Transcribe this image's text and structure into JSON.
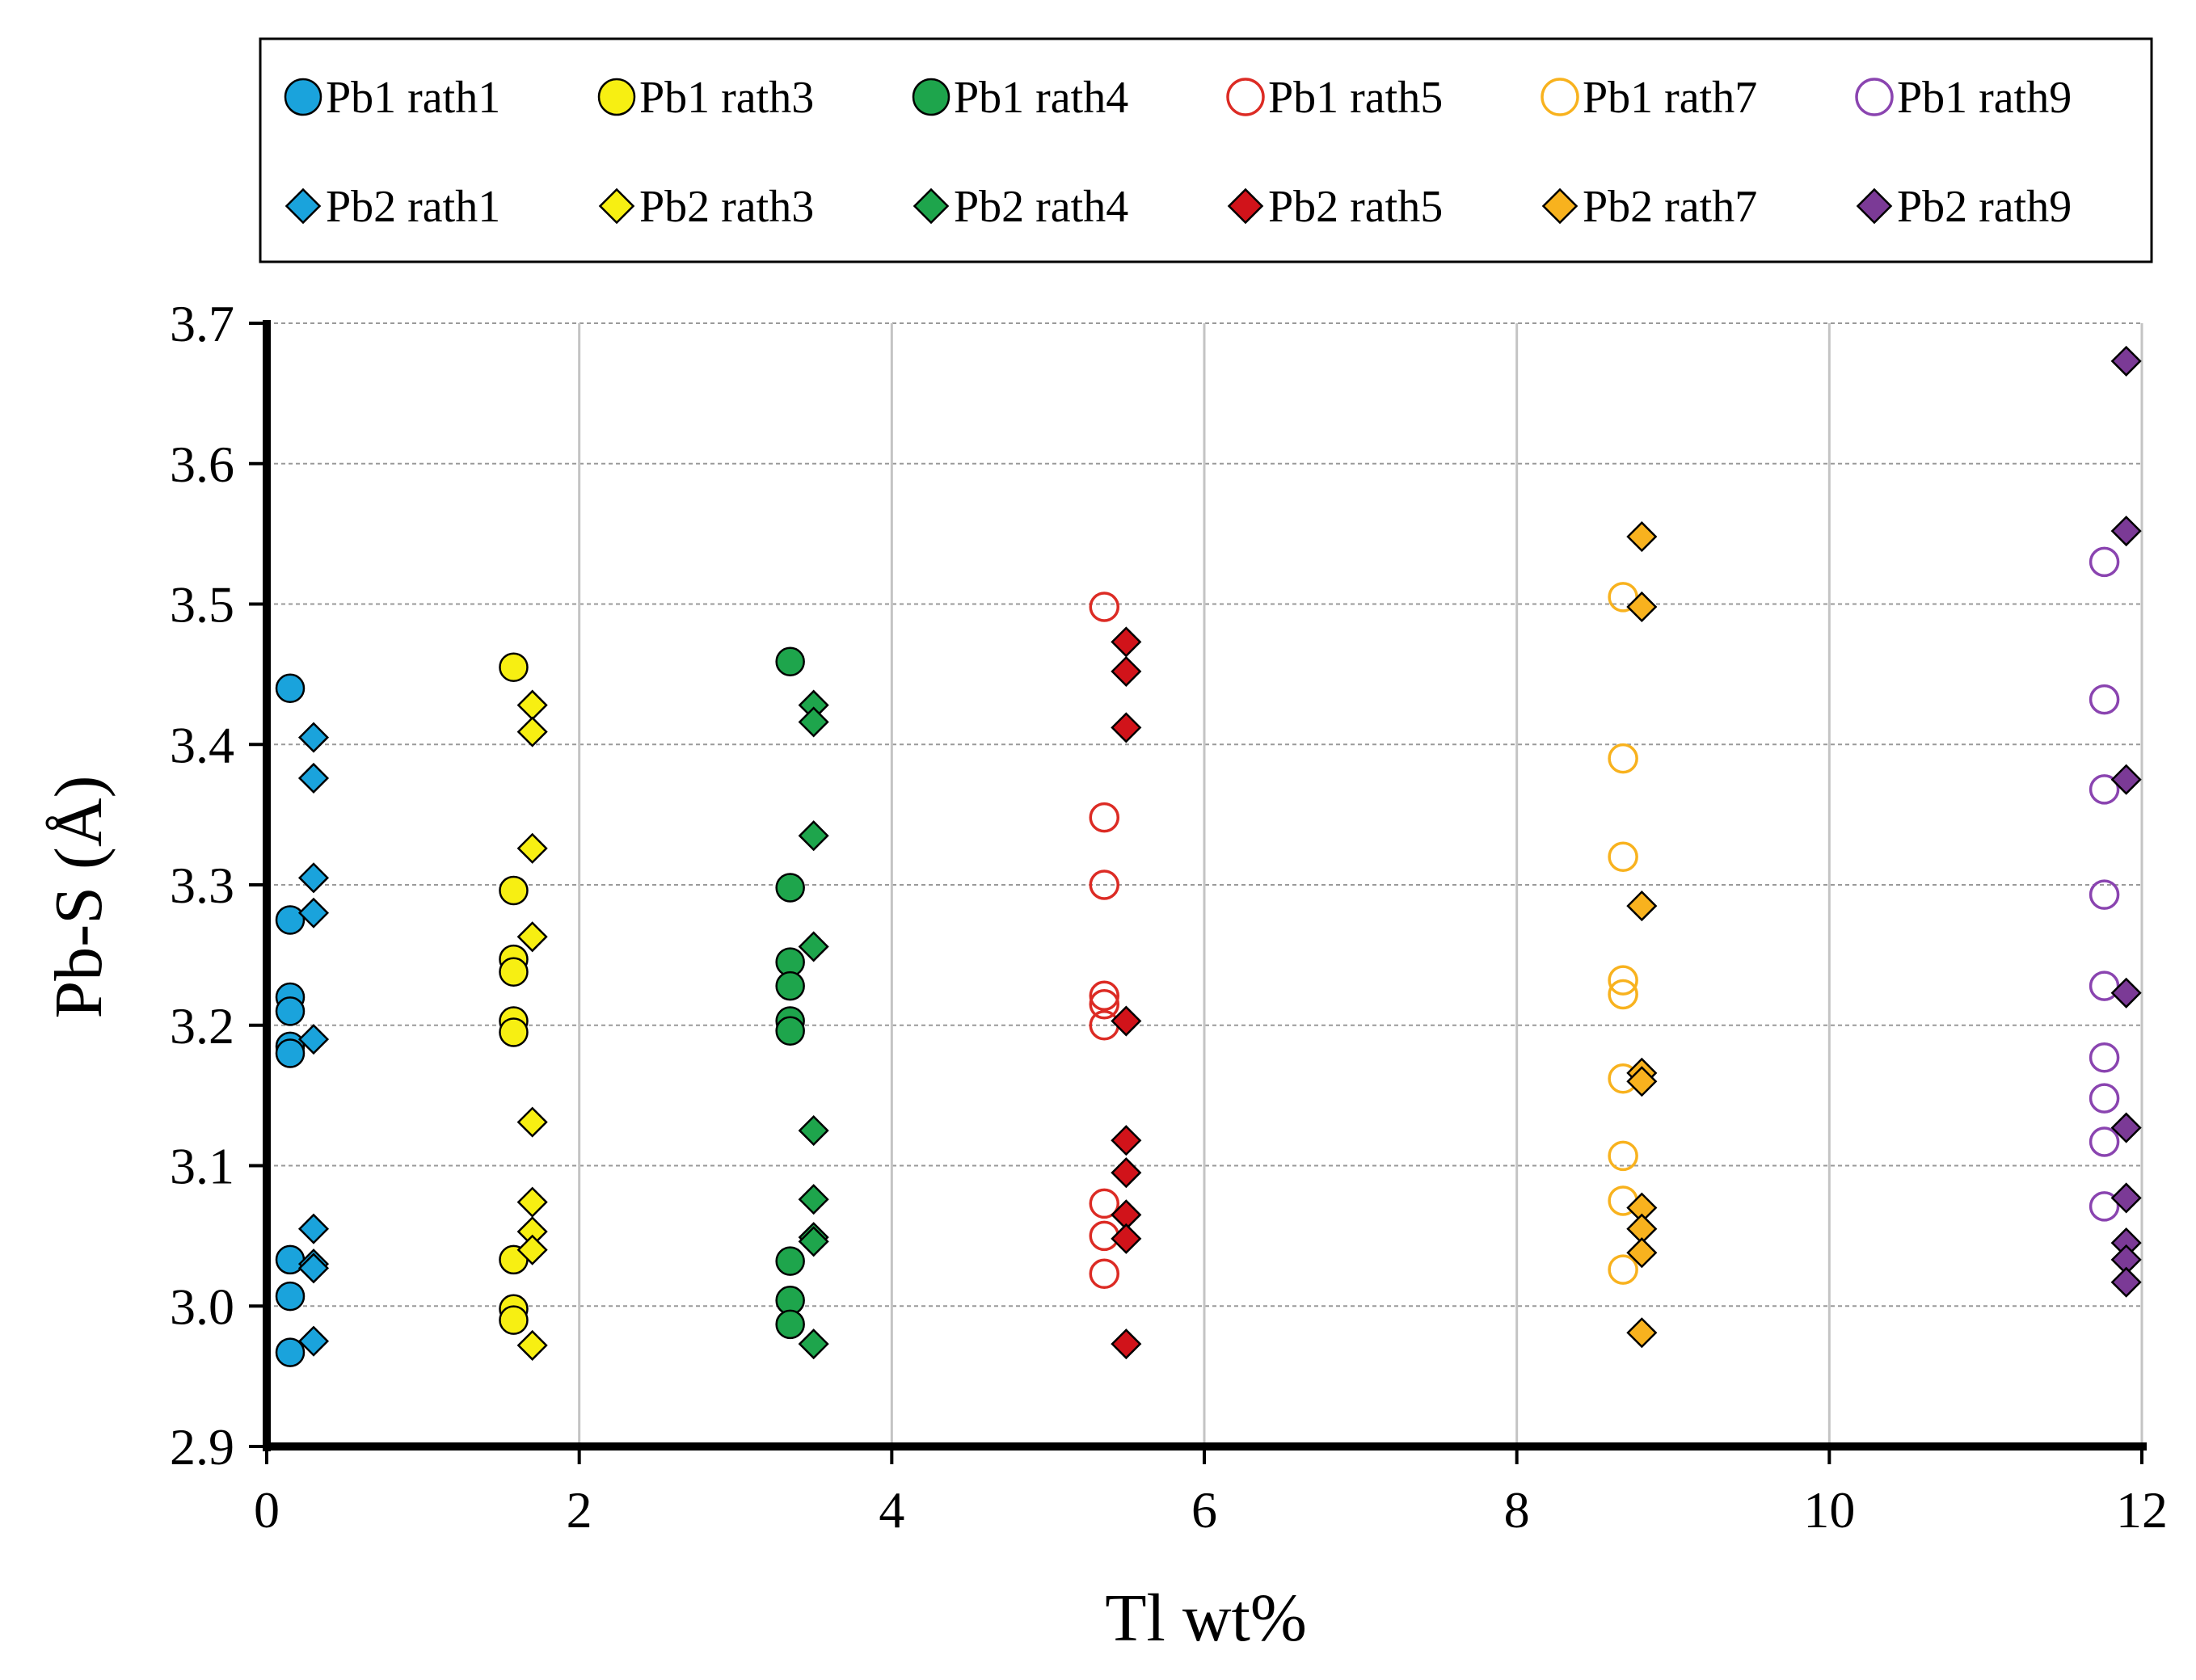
{
  "chart_data": {
    "type": "scatter",
    "title": "",
    "xlabel": "Tl wt%",
    "ylabel": "Pb-S (Å)",
    "xlim": [
      0,
      12
    ],
    "ylim": [
      2.9,
      3.7
    ],
    "xticks": [
      0,
      2,
      4,
      6,
      8,
      10,
      12
    ],
    "xtick_labels": [
      "0",
      "2",
      "4",
      "6",
      "8",
      "10",
      "12"
    ],
    "yticks": [
      2.9,
      3.0,
      3.1,
      3.2,
      3.3,
      3.4,
      3.5,
      3.6,
      3.7
    ],
    "ytick_labels": [
      "2.9",
      "3.0",
      "3.1",
      "3.2",
      "3.3",
      "3.4",
      "3.5",
      "3.6",
      "3.7"
    ],
    "grid": true,
    "legend_position": "top",
    "series": [
      {
        "name": "Pb1 rath1",
        "marker": "circle",
        "filled": true,
        "color": "#1aa3dc",
        "x": 0.15,
        "y": [
          3.44,
          3.275,
          3.22,
          3.21,
          3.185,
          3.18,
          3.033,
          3.007,
          2.967
        ]
      },
      {
        "name": "Pb1 rath3",
        "marker": "circle",
        "filled": true,
        "color": "#f7ef12",
        "x": 1.58,
        "y": [
          3.455,
          3.296,
          3.247,
          3.238,
          3.203,
          3.195,
          3.033,
          2.998,
          2.99
        ]
      },
      {
        "name": "Pb1 rath4",
        "marker": "circle",
        "filled": true,
        "color": "#1ea54c",
        "x": 3.35,
        "y": [
          3.459,
          3.298,
          3.245,
          3.228,
          3.203,
          3.196,
          3.032,
          3.004,
          2.987
        ]
      },
      {
        "name": "Pb1 rath5",
        "marker": "circle",
        "filled": false,
        "color": "#dc2b24",
        "x": 5.36,
        "y": [
          3.498,
          3.348,
          3.3,
          3.221,
          3.215,
          3.2,
          3.073,
          3.05,
          3.023
        ]
      },
      {
        "name": "Pb1 rath7",
        "marker": "circle",
        "filled": false,
        "color": "#f8b21e",
        "x": 8.68,
        "y": [
          3.505,
          3.39,
          3.32,
          3.232,
          3.222,
          3.162,
          3.107,
          3.075,
          3.026
        ]
      },
      {
        "name": "Pb1 rath9",
        "marker": "circle",
        "filled": false,
        "color": "#8a44b0",
        "x": 11.76,
        "y": [
          3.53,
          3.432,
          3.368,
          3.293,
          3.228,
          3.177,
          3.148,
          3.117,
          3.071
        ]
      },
      {
        "name": "Pb2 rath1",
        "marker": "diamond",
        "filled": true,
        "color": "#1aa3dc",
        "x": 0.3,
        "y": [
          3.405,
          3.376,
          3.305,
          3.28,
          3.19,
          3.055,
          3.03,
          3.027,
          2.975
        ]
      },
      {
        "name": "Pb2 rath3",
        "marker": "diamond",
        "filled": true,
        "color": "#f7ef12",
        "x": 1.7,
        "y": [
          3.428,
          3.409,
          3.326,
          3.263,
          3.131,
          3.074,
          3.053,
          3.04,
          2.972
        ]
      },
      {
        "name": "Pb2 rath4",
        "marker": "diamond",
        "filled": true,
        "color": "#1ea54c",
        "x": 3.5,
        "y": [
          3.428,
          3.416,
          3.335,
          3.256,
          3.125,
          3.076,
          3.049,
          3.046,
          2.973
        ]
      },
      {
        "name": "Pb2 rath5",
        "marker": "diamond",
        "filled": true,
        "color": "#d1131a",
        "x": 5.5,
        "y": [
          3.473,
          3.452,
          3.412,
          3.203,
          3.118,
          3.095,
          3.065,
          3.048,
          2.973
        ]
      },
      {
        "name": "Pb2 rath7",
        "marker": "diamond",
        "filled": true,
        "color": "#f8b21e",
        "x": 8.8,
        "y": [
          3.548,
          3.498,
          3.285,
          3.166,
          3.16,
          3.07,
          3.055,
          3.038,
          2.981
        ]
      },
      {
        "name": "Pb2 rath9",
        "marker": "diamond",
        "filled": true,
        "color": "#7b3a96",
        "x": 11.9,
        "y": [
          3.673,
          3.552,
          3.375,
          3.223,
          3.127,
          3.077,
          3.045,
          3.033,
          3.017
        ]
      }
    ]
  }
}
